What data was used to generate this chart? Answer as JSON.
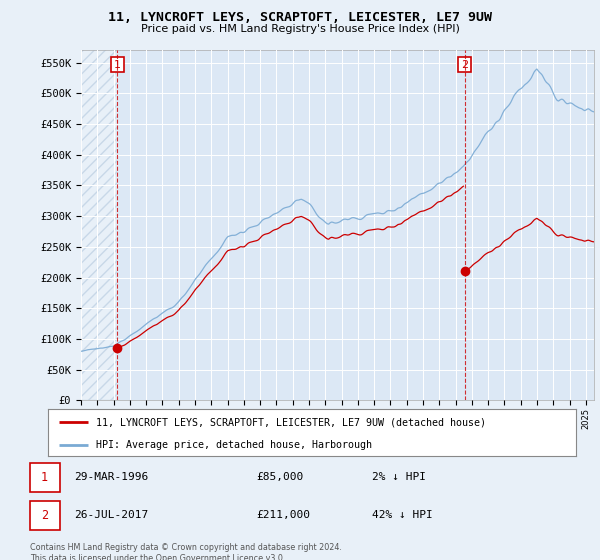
{
  "title1": "11, LYNCROFT LEYS, SCRAPTOFT, LEICESTER, LE7 9UW",
  "title2": "Price paid vs. HM Land Registry's House Price Index (HPI)",
  "ylabel_ticks": [
    "£0",
    "£50K",
    "£100K",
    "£150K",
    "£200K",
    "£250K",
    "£300K",
    "£350K",
    "£400K",
    "£450K",
    "£500K",
    "£550K"
  ],
  "ytick_vals": [
    0,
    50000,
    100000,
    150000,
    200000,
    250000,
    300000,
    350000,
    400000,
    450000,
    500000,
    550000
  ],
  "ylim": [
    0,
    570000
  ],
  "xlim_start": 1994.0,
  "xlim_end": 2025.5,
  "purchase1_x": 1996.23,
  "purchase1_y": 85000,
  "purchase1_label": "1",
  "purchase2_x": 2017.56,
  "purchase2_y": 211000,
  "purchase2_label": "2",
  "hpi_color": "#7aaad4",
  "price_color": "#cc0000",
  "legend_line1": "11, LYNCROFT LEYS, SCRAPTOFT, LEICESTER, LE7 9UW (detached house)",
  "legend_line2": "HPI: Average price, detached house, Harborough",
  "footnote": "Contains HM Land Registry data © Crown copyright and database right 2024.\nThis data is licensed under the Open Government Licence v3.0.",
  "background_color": "#e8f0f8",
  "plot_bg": "#dce8f5",
  "hatch_color": "#c8d8e8"
}
